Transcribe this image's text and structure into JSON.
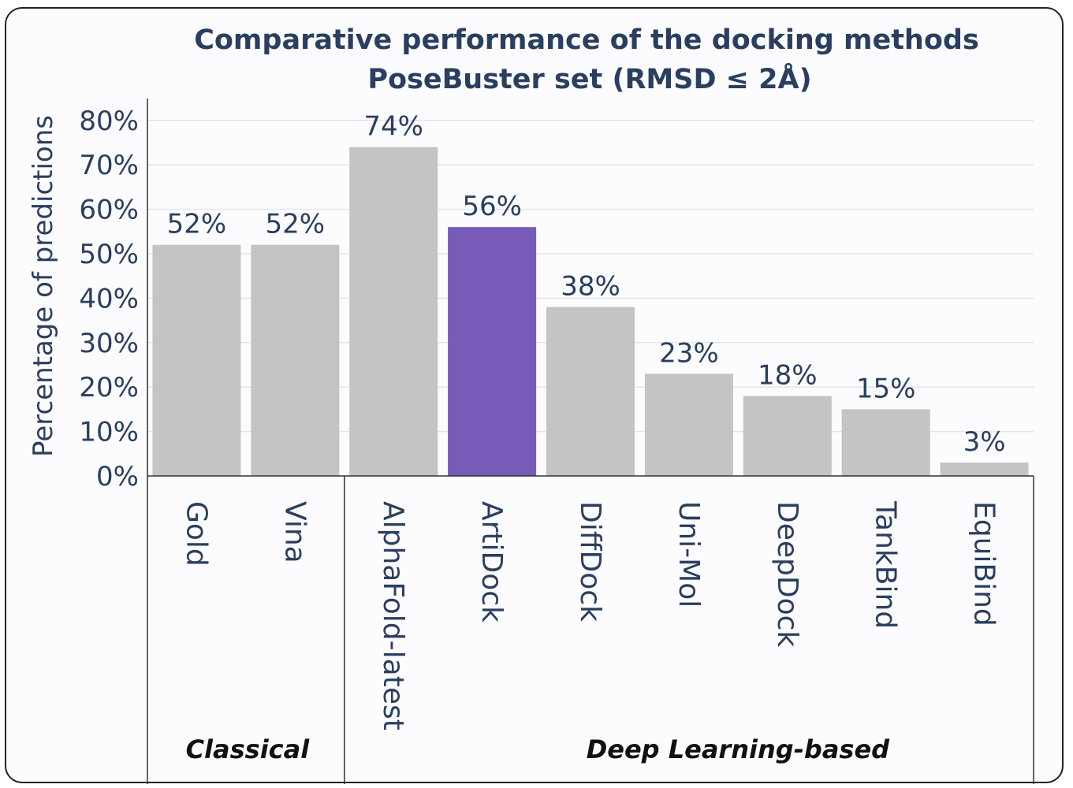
{
  "chart_data": {
    "type": "bar",
    "title": "Comparative performance of the docking methods",
    "subtitle": "PoseBuster set (RMSD ≤ 2Å)",
    "ylabel": "Percentage of predictions",
    "xlabel": "",
    "ylim": [
      0,
      85
    ],
    "yticks": [
      0,
      10,
      20,
      30,
      40,
      50,
      60,
      70,
      80
    ],
    "ytick_labels": [
      "0%",
      "10%",
      "20%",
      "30%",
      "40%",
      "50%",
      "60%",
      "70%",
      "80%"
    ],
    "grid": true,
    "categories": [
      "Gold",
      "Vina",
      "AlphaFold-latest",
      "ArtiDock",
      "DiffDock",
      "Uni-Mol",
      "DeepDock",
      "TankBind",
      "EquiBind"
    ],
    "values": [
      52,
      52,
      74,
      56,
      38,
      23,
      18,
      15,
      3
    ],
    "value_labels": [
      "52%",
      "52%",
      "74%",
      "56%",
      "38%",
      "23%",
      "18%",
      "15%",
      "3%"
    ],
    "bar_colors": [
      "#c4c4c4",
      "#c4c4c4",
      "#c4c4c4",
      "#785bb9",
      "#c4c4c4",
      "#c4c4c4",
      "#c4c4c4",
      "#c4c4c4",
      "#c4c4c4"
    ],
    "groups": [
      {
        "label": "Classical",
        "categories": [
          "Gold",
          "Vina"
        ]
      },
      {
        "label": "Deep Learning-based",
        "categories": [
          "AlphaFold-latest",
          "ArtiDock",
          "DiffDock",
          "Uni-Mol",
          "DeepDock",
          "TankBind",
          "EquiBind"
        ]
      }
    ]
  },
  "colors": {
    "text": "#2a3f5f",
    "grid": "#e4e4ea",
    "highlight": "#785bb9",
    "bar_default": "#c4c4c4",
    "background": "#fcfbfe"
  }
}
